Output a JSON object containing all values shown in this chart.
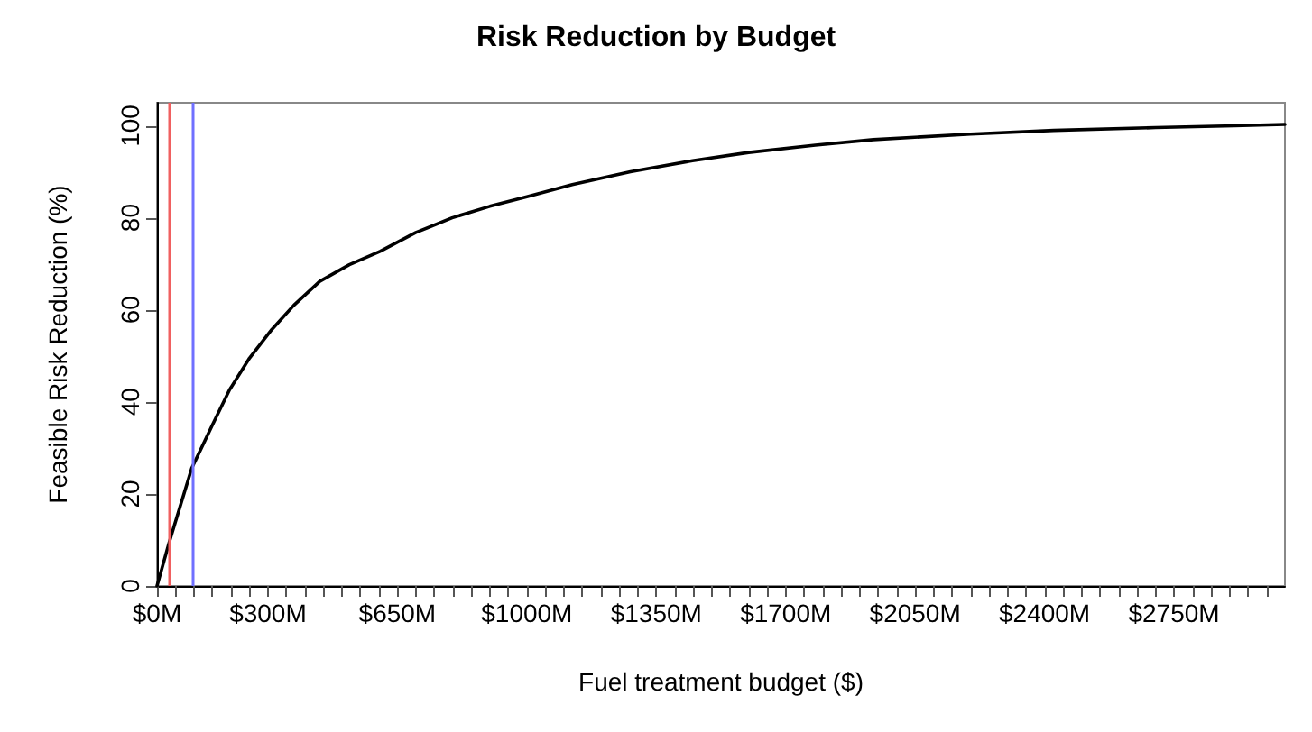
{
  "chart_data": {
    "type": "line",
    "title": "Risk Reduction by Budget",
    "xlabel": "Fuel treatment budget ($)",
    "ylabel": "Feasible Risk Reduction (%)",
    "x": [
      0,
      32,
      94,
      150,
      196,
      250,
      310,
      370,
      440,
      520,
      603,
      700,
      798,
      900,
      1000,
      1123,
      1280,
      1448,
      1600,
      1780,
      1937,
      2200,
      2425,
      2700,
      2913,
      3050
    ],
    "series": [
      {
        "color": "#000000",
        "values": [
          0,
          9.2,
          25.6,
          35,
          42.6,
          49.5,
          55.7,
          61,
          66.2,
          69.8,
          72.7,
          76.8,
          80,
          82.5,
          84.6,
          87.2,
          90,
          92.4,
          94.2,
          95.8,
          97,
          98.2,
          99,
          99.6,
          100,
          100.3
        ]
      }
    ],
    "xlim": [
      0,
      3050
    ],
    "xticks": [
      {
        "value": 0,
        "label": "$0M"
      },
      {
        "value": 50,
        "label": null
      },
      {
        "value": 100,
        "label": null
      },
      {
        "value": 150,
        "label": null
      },
      {
        "value": 200,
        "label": null
      },
      {
        "value": 250,
        "label": null
      },
      {
        "value": 300,
        "label": "$300M"
      },
      {
        "value": 350,
        "label": null
      },
      {
        "value": 400,
        "label": null
      },
      {
        "value": 450,
        "label": null
      },
      {
        "value": 500,
        "label": null
      },
      {
        "value": 550,
        "label": null
      },
      {
        "value": 600,
        "label": null
      },
      {
        "value": 650,
        "label": "$650M"
      },
      {
        "value": 700,
        "label": null
      },
      {
        "value": 750,
        "label": null
      },
      {
        "value": 800,
        "label": null
      },
      {
        "value": 850,
        "label": null
      },
      {
        "value": 900,
        "label": null
      },
      {
        "value": 950,
        "label": null
      },
      {
        "value": 1000,
        "label": "$1000M"
      },
      {
        "value": 1050,
        "label": null
      },
      {
        "value": 1100,
        "label": null
      },
      {
        "value": 1150,
        "label": null
      },
      {
        "value": 1200,
        "label": null
      },
      {
        "value": 1250,
        "label": null
      },
      {
        "value": 1300,
        "label": null
      },
      {
        "value": 1350,
        "label": "$1350M"
      },
      {
        "value": 1400,
        "label": null
      },
      {
        "value": 1450,
        "label": null
      },
      {
        "value": 1500,
        "label": null
      },
      {
        "value": 1550,
        "label": null
      },
      {
        "value": 1600,
        "label": null
      },
      {
        "value": 1650,
        "label": null
      },
      {
        "value": 1700,
        "label": "$1700M"
      },
      {
        "value": 1750,
        "label": null
      },
      {
        "value": 1800,
        "label": null
      },
      {
        "value": 1850,
        "label": null
      },
      {
        "value": 1900,
        "label": null
      },
      {
        "value": 1950,
        "label": null
      },
      {
        "value": 2000,
        "label": null
      },
      {
        "value": 2050,
        "label": "$2050M"
      },
      {
        "value": 2100,
        "label": null
      },
      {
        "value": 2150,
        "label": null
      },
      {
        "value": 2200,
        "label": null
      },
      {
        "value": 2250,
        "label": null
      },
      {
        "value": 2300,
        "label": null
      },
      {
        "value": 2350,
        "label": null
      },
      {
        "value": 2400,
        "label": "$2400M"
      },
      {
        "value": 2450,
        "label": null
      },
      {
        "value": 2500,
        "label": null
      },
      {
        "value": 2550,
        "label": null
      },
      {
        "value": 2600,
        "label": null
      },
      {
        "value": 2650,
        "label": null
      },
      {
        "value": 2700,
        "label": null
      },
      {
        "value": 2750,
        "label": "$2750M"
      },
      {
        "value": 2800,
        "label": null
      },
      {
        "value": 2850,
        "label": null
      },
      {
        "value": 2900,
        "label": null
      },
      {
        "value": 2950,
        "label": null
      },
      {
        "value": 3000,
        "label": null
      }
    ],
    "ylim": [
      0,
      105
    ],
    "yticks": [
      0,
      20,
      40,
      60,
      80,
      100
    ],
    "ref_lines": [
      {
        "axis": "x",
        "value": 32,
        "color": "#f06060"
      },
      {
        "axis": "x",
        "value": 94,
        "color": "#7070ff"
      }
    ],
    "grid": false,
    "marker": "none",
    "line_style": "solid"
  }
}
